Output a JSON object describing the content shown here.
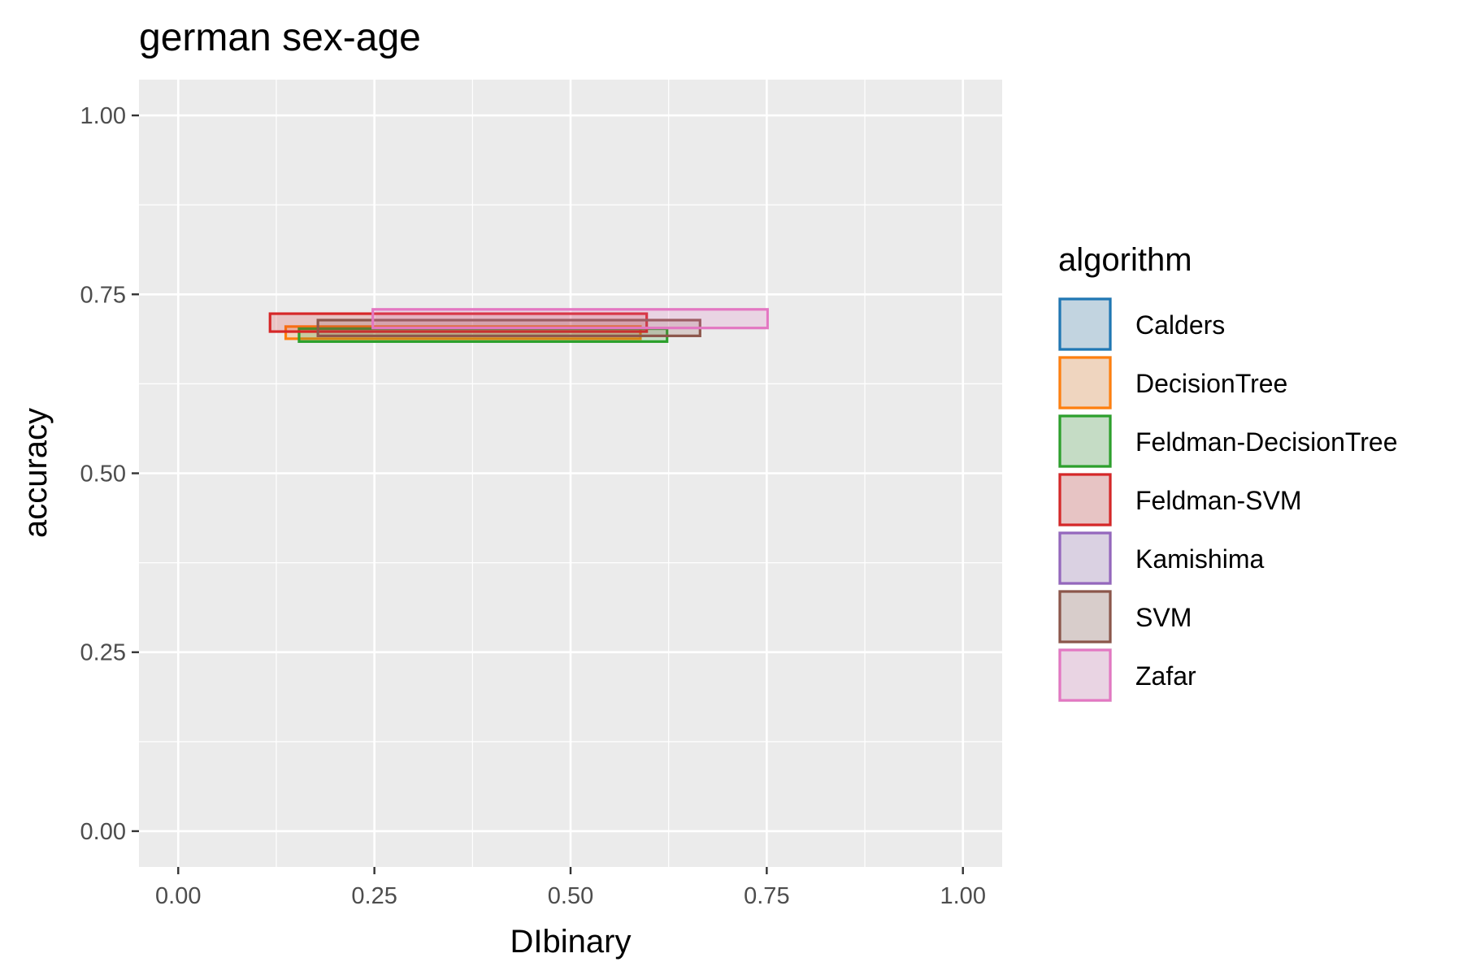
{
  "chart_data": {
    "type": "rectangle-range",
    "title": "german sex-age",
    "xlabel": "DIbinary",
    "ylabel": "accuracy",
    "xlim": [
      -0.05,
      1.05
    ],
    "ylim": [
      -0.05,
      1.05
    ],
    "x_ticks": [
      "0.00",
      "0.25",
      "0.50",
      "0.75",
      "1.00"
    ],
    "y_ticks": [
      "0.00",
      "0.25",
      "0.50",
      "0.75",
      "1.00"
    ],
    "x_tick_values": [
      0,
      0.25,
      0.5,
      0.75,
      1.0
    ],
    "y_tick_values": [
      0,
      0.25,
      0.5,
      0.75,
      1.0
    ],
    "grid": true,
    "legend_position": "right",
    "legend": {
      "title": "algorithm",
      "entries": [
        {
          "label": "Calders",
          "color": "#1f77b4"
        },
        {
          "label": "DecisionTree",
          "color": "#ff7f0e"
        },
        {
          "label": "Feldman-DecisionTree",
          "color": "#2ca02c"
        },
        {
          "label": "Feldman-SVM",
          "color": "#d62728"
        },
        {
          "label": "Kamishima",
          "color": "#9467bd"
        },
        {
          "label": "SVM",
          "color": "#8c564b"
        },
        {
          "label": "Zafar",
          "color": "#e377c2"
        }
      ]
    },
    "series": [
      {
        "name": "DecisionTree",
        "color": "#ff7f0e",
        "xmin": 0.137,
        "xmax": 0.589,
        "ymin": 0.688,
        "ymax": 0.705
      },
      {
        "name": "Feldman-DecisionTree",
        "color": "#2ca02c",
        "xmin": 0.154,
        "xmax": 0.623,
        "ymin": 0.684,
        "ymax": 0.702
      },
      {
        "name": "Feldman-SVM",
        "color": "#d62728",
        "xmin": 0.117,
        "xmax": 0.597,
        "ymin": 0.698,
        "ymax": 0.723
      },
      {
        "name": "SVM",
        "color": "#8c564b",
        "xmin": 0.178,
        "xmax": 0.665,
        "ymin": 0.692,
        "ymax": 0.714
      },
      {
        "name": "Zafar",
        "color": "#e377c2",
        "xmin": 0.248,
        "xmax": 0.751,
        "ymin": 0.703,
        "ymax": 0.729
      }
    ]
  }
}
